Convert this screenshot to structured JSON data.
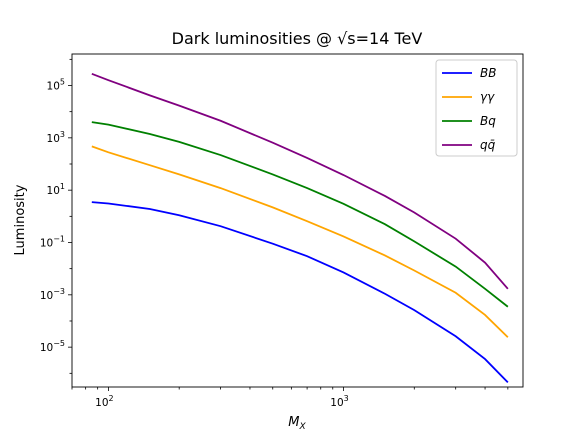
{
  "chart_data": {
    "type": "line",
    "title": "Dark luminosities @ √s=14 TeV",
    "xlabel": "M",
    "xlabel_sub": "X",
    "ylabel": "Luminosity",
    "xscale": "log",
    "yscale": "log",
    "xlim": [
      70,
      5800
    ],
    "ylim": [
      3e-07,
      1600000.0
    ],
    "x_ticks": [
      {
        "base": "10",
        "exp": "2",
        "value": 100
      },
      {
        "base": "10",
        "exp": "3",
        "value": 1000
      }
    ],
    "y_ticks": [
      {
        "base": "10",
        "exp": "5",
        "value": 100000
      },
      {
        "base": "10",
        "exp": "3",
        "value": 1000
      },
      {
        "base": "10",
        "exp": "1",
        "value": 10
      },
      {
        "base": "10",
        "exp": "−1",
        "value": 0.1
      },
      {
        "base": "10",
        "exp": "−3",
        "value": 0.001
      },
      {
        "base": "10",
        "exp": "−5",
        "value": 1e-05
      }
    ],
    "grid": false,
    "legend_position": "top-right",
    "series": [
      {
        "name": "BB",
        "color": "#0000ff",
        "x": [
          85,
          100,
          150,
          200,
          300,
          500,
          700,
          1000,
          1500,
          2000,
          3000,
          4000,
          5000
        ],
        "y": [
          3.5,
          3.1,
          1.9,
          1.1,
          0.42,
          0.09,
          0.03,
          0.0072,
          0.0011,
          0.00026,
          2.6e-05,
          3.5e-06,
          4.5e-07
        ]
      },
      {
        "name": "γγ",
        "color": "#ffa500",
        "x": [
          85,
          100,
          150,
          200,
          300,
          500,
          700,
          1000,
          1500,
          2000,
          3000,
          4000,
          5000
        ],
        "y": [
          470,
          280,
          90,
          40,
          12,
          2.2,
          0.65,
          0.17,
          0.032,
          0.0085,
          0.0012,
          0.00017,
          2.4e-05
        ]
      },
      {
        "name": "Bq",
        "color": "#008000",
        "x": [
          85,
          100,
          150,
          200,
          300,
          500,
          700,
          1000,
          1500,
          2000,
          3000,
          4000,
          5000
        ],
        "y": [
          4000,
          3200,
          1400,
          700,
          220,
          40,
          12,
          3.0,
          0.5,
          0.11,
          0.012,
          0.0017,
          0.00035
        ]
      },
      {
        "name": "qq̄",
        "color": "#800080",
        "x": [
          85,
          100,
          150,
          200,
          300,
          500,
          700,
          1000,
          1500,
          2000,
          3000,
          4000,
          5000
        ],
        "y": [
          280000,
          160000,
          42000,
          17000,
          4500,
          650,
          170,
          38,
          6,
          1.4,
          0.14,
          0.017,
          0.0017
        ]
      }
    ]
  }
}
